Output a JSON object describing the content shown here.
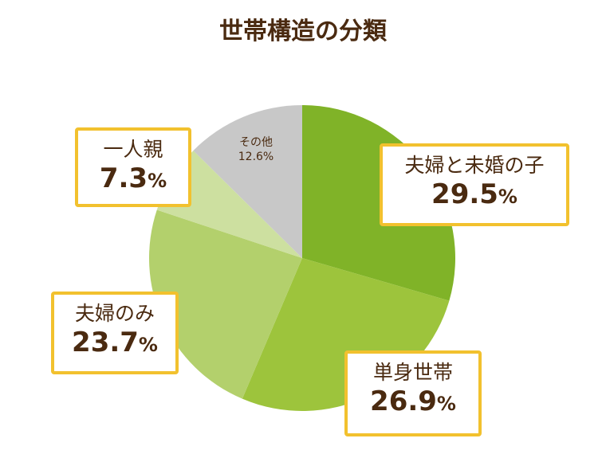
{
  "chart_data": {
    "type": "pie",
    "title": "世帯構造の分類",
    "slices": [
      {
        "label": "夫婦と未婚の子",
        "value": 29.5,
        "display": "29.5",
        "color": "#80b328"
      },
      {
        "label": "単身世帯",
        "value": 26.9,
        "display": "26.9",
        "color": "#9dc43c"
      },
      {
        "label": "夫婦のみ",
        "value": 23.7,
        "display": "23.7",
        "color": "#b3d06c"
      },
      {
        "label": "一人親",
        "value": 7.3,
        "display": "7.3",
        "color": "#cde0a0"
      },
      {
        "label": "その他",
        "value": 12.6,
        "display": "12.6%",
        "color": "#c8c8c8"
      }
    ],
    "percent_sign": "%",
    "start": "12 o'clock",
    "direction": "clockwise"
  },
  "colors": {
    "title": "#4a2a10",
    "label_text": "#4a2a10",
    "callout_border": "#f2c12e"
  }
}
